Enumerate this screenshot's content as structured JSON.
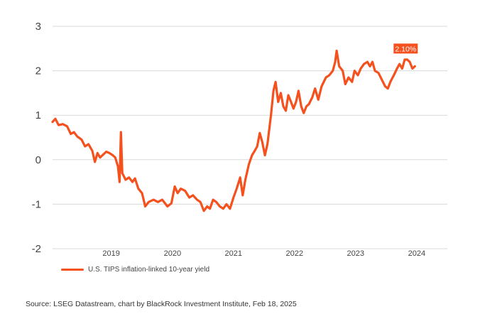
{
  "chart_data": {
    "type": "line",
    "title": "",
    "xlabel": "",
    "ylabel": "",
    "ylim": [
      -2,
      3
    ],
    "yticks": [
      "3",
      "2",
      "1",
      "0",
      "-1",
      "-2"
    ],
    "xticks": [
      "2019",
      "2020",
      "2021",
      "2022",
      "2023",
      "2024"
    ],
    "xlim": [
      "2018-07-15",
      "2024-12-31"
    ],
    "grid": "horizontal",
    "legend_position": "bottom-left",
    "end_label": "2.10%",
    "colors": {
      "series": "#f4511e",
      "grid": "#d9d9d9"
    },
    "series": [
      {
        "name": "U.S. TIPS inflation-linked 10-year yield",
        "points": [
          [
            "2018-07-15",
            0.85
          ],
          [
            "2018-08-01",
            0.92
          ],
          [
            "2018-08-20",
            0.78
          ],
          [
            "2018-09-15",
            0.8
          ],
          [
            "2018-10-10",
            0.75
          ],
          [
            "2018-11-01",
            0.58
          ],
          [
            "2018-11-20",
            0.62
          ],
          [
            "2018-12-10",
            0.52
          ],
          [
            "2019-01-05",
            0.45
          ],
          [
            "2019-01-25",
            0.3
          ],
          [
            "2019-02-15",
            0.35
          ],
          [
            "2019-03-10",
            0.2
          ],
          [
            "2019-03-25",
            -0.05
          ],
          [
            "2019-04-10",
            0.15
          ],
          [
            "2019-04-25",
            0.05
          ],
          [
            "2019-05-15",
            0.12
          ],
          [
            "2019-06-01",
            0.18
          ],
          [
            "2019-06-20",
            0.15
          ],
          [
            "2019-07-10",
            0.1
          ],
          [
            "2019-07-25",
            0.05
          ],
          [
            "2019-08-10",
            -0.15
          ],
          [
            "2019-08-20",
            -0.5
          ],
          [
            "2019-08-28",
            0.62
          ],
          [
            "2019-09-05",
            -0.3
          ],
          [
            "2019-09-25",
            -0.45
          ],
          [
            "2019-10-15",
            -0.4
          ],
          [
            "2019-11-05",
            -0.5
          ],
          [
            "2019-11-20",
            -0.42
          ],
          [
            "2019-12-10",
            -0.65
          ],
          [
            "2020-01-01",
            -0.75
          ],
          [
            "2020-01-20",
            -1.05
          ],
          [
            "2020-02-10",
            -0.95
          ],
          [
            "2020-03-10",
            -0.9
          ],
          [
            "2020-04-05",
            -0.95
          ],
          [
            "2020-05-01",
            -0.9
          ],
          [
            "2020-06-01",
            -1.05
          ],
          [
            "2020-06-25",
            -0.98
          ],
          [
            "2020-07-15",
            -0.6
          ],
          [
            "2020-08-01",
            -0.75
          ],
          [
            "2020-08-20",
            -0.65
          ],
          [
            "2020-09-15",
            -0.7
          ],
          [
            "2020-10-10",
            -0.85
          ],
          [
            "2020-11-01",
            -0.8
          ],
          [
            "2020-11-25",
            -0.9
          ],
          [
            "2020-12-15",
            -0.95
          ],
          [
            "2021-01-05",
            -1.15
          ],
          [
            "2021-01-25",
            -1.05
          ],
          [
            "2021-02-10",
            -1.1
          ],
          [
            "2021-03-01",
            -0.9
          ],
          [
            "2021-03-20",
            -0.95
          ],
          [
            "2021-04-10",
            -1.05
          ],
          [
            "2021-05-01",
            -1.1
          ],
          [
            "2021-05-20",
            -1.0
          ],
          [
            "2021-06-10",
            -1.1
          ],
          [
            "2021-07-01",
            -0.85
          ],
          [
            "2021-07-20",
            -0.65
          ],
          [
            "2021-08-10",
            -0.4
          ],
          [
            "2021-08-25",
            -0.8
          ],
          [
            "2021-09-10",
            -0.45
          ],
          [
            "2021-10-01",
            -0.1
          ],
          [
            "2021-10-20",
            0.1
          ],
          [
            "2021-11-05",
            0.2
          ],
          [
            "2021-11-20",
            0.3
          ],
          [
            "2021-12-05",
            0.6
          ],
          [
            "2021-12-20",
            0.4
          ],
          [
            "2022-01-05",
            0.1
          ],
          [
            "2022-01-20",
            0.35
          ],
          [
            "2022-02-10",
            1.0
          ],
          [
            "2022-02-25",
            1.55
          ],
          [
            "2022-03-10",
            1.75
          ],
          [
            "2022-03-25",
            1.3
          ],
          [
            "2022-04-10",
            1.5
          ],
          [
            "2022-04-25",
            1.2
          ],
          [
            "2022-05-10",
            1.1
          ],
          [
            "2022-05-25",
            1.45
          ],
          [
            "2022-06-10",
            1.3
          ],
          [
            "2022-06-25",
            1.15
          ],
          [
            "2022-07-10",
            1.3
          ],
          [
            "2022-07-25",
            1.55
          ],
          [
            "2022-08-10",
            1.2
          ],
          [
            "2022-08-25",
            1.05
          ],
          [
            "2022-09-10",
            1.2
          ],
          [
            "2022-09-25",
            1.25
          ],
          [
            "2022-10-15",
            1.4
          ],
          [
            "2022-11-01",
            1.6
          ],
          [
            "2022-11-20",
            1.35
          ],
          [
            "2022-12-10",
            1.65
          ],
          [
            "2023-01-05",
            1.85
          ],
          [
            "2023-01-25",
            1.9
          ],
          [
            "2023-02-15",
            2.0
          ],
          [
            "2023-03-01",
            2.2
          ],
          [
            "2023-03-10",
            2.45
          ],
          [
            "2023-03-25",
            2.1
          ],
          [
            "2023-04-15",
            2.0
          ],
          [
            "2023-05-01",
            1.7
          ],
          [
            "2023-05-20",
            1.85
          ],
          [
            "2023-06-10",
            1.75
          ],
          [
            "2023-06-25",
            2.0
          ],
          [
            "2023-07-15",
            1.9
          ],
          [
            "2023-08-01",
            2.05
          ],
          [
            "2023-08-20",
            2.15
          ],
          [
            "2023-09-10",
            2.2
          ],
          [
            "2023-09-25",
            2.1
          ],
          [
            "2023-10-10",
            2.2
          ],
          [
            "2023-10-25",
            2.0
          ],
          [
            "2023-11-15",
            1.95
          ],
          [
            "2023-12-05",
            1.8
          ],
          [
            "2023-12-25",
            1.65
          ],
          [
            "2024-01-10",
            1.6
          ],
          [
            "2024-01-25",
            1.75
          ],
          [
            "2024-02-15",
            1.9
          ],
          [
            "2024-03-05",
            2.05
          ],
          [
            "2024-03-20",
            2.15
          ],
          [
            "2024-04-05",
            2.05
          ],
          [
            "2024-04-20",
            2.25
          ],
          [
            "2024-05-05",
            2.25
          ],
          [
            "2024-05-20",
            2.2
          ],
          [
            "2024-06-05",
            2.05
          ],
          [
            "2024-06-20",
            2.1
          ]
        ]
      }
    ]
  },
  "legend": {
    "label": "U.S. TIPS inflation-linked 10-year yield"
  },
  "source": "Source: LSEG Datastream, chart by BlackRock Investment Institute, Feb 18, 2025"
}
